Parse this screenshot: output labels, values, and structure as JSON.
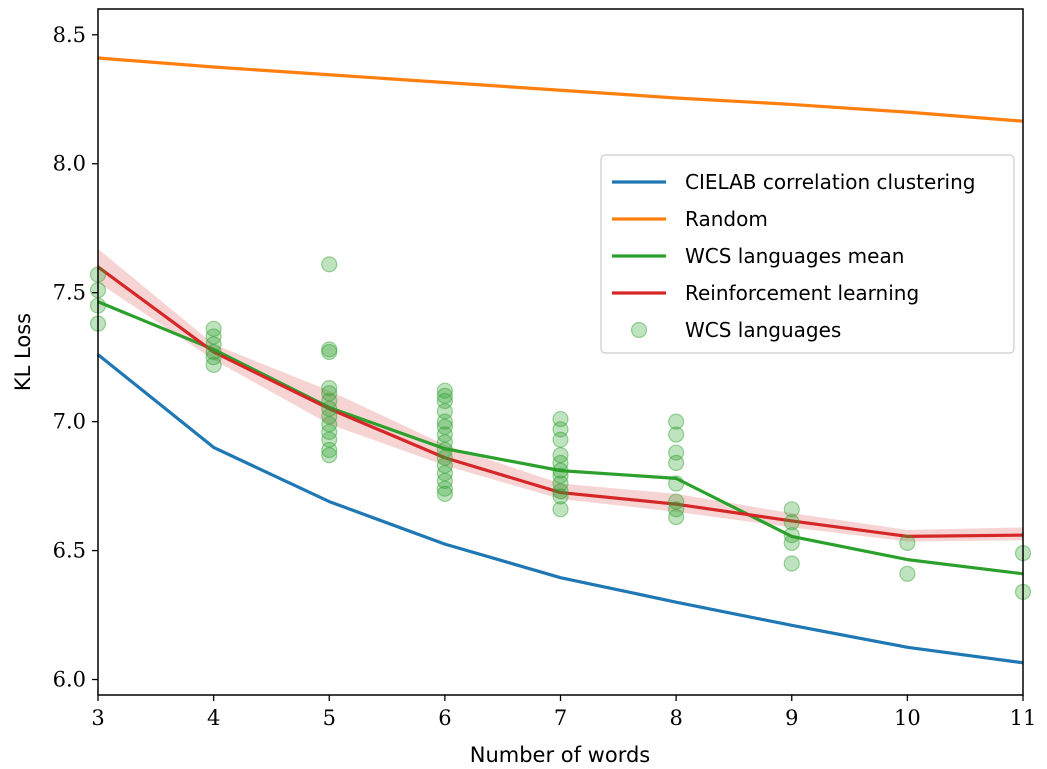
{
  "chart_data": {
    "type": "line",
    "xlabel": "Number of words",
    "ylabel": "KL Loss",
    "xlim": [
      3,
      11
    ],
    "ylim": [
      5.94,
      8.6
    ],
    "xticks": [
      "3",
      "4",
      "5",
      "6",
      "7",
      "8",
      "9",
      "10",
      "11"
    ],
    "yticks": [
      "6.0",
      "6.5",
      "7.0",
      "7.5",
      "8.0",
      "8.5"
    ],
    "grid": false,
    "legend_position": "right",
    "x": [
      3,
      4,
      5,
      6,
      7,
      8,
      9,
      10,
      11
    ],
    "series": [
      {
        "name": "CIELAB correlation clustering",
        "color": "#1f77b4",
        "values": [
          7.26,
          6.9,
          6.69,
          6.525,
          6.395,
          6.3,
          6.21,
          6.125,
          6.065
        ]
      },
      {
        "name": "Random",
        "color": "#ff7f0e",
        "values": [
          8.41,
          8.375,
          8.345,
          8.315,
          8.285,
          8.255,
          8.23,
          8.2,
          8.165
        ]
      },
      {
        "name": "WCS languages mean",
        "color": "#2ca02c",
        "values": [
          7.465,
          7.28,
          7.055,
          6.895,
          6.81,
          6.78,
          6.555,
          6.465,
          6.41
        ]
      },
      {
        "name": "Reinforcement learning",
        "color": "#d62728",
        "values": [
          7.6,
          7.27,
          7.05,
          6.86,
          6.725,
          6.68,
          6.615,
          6.555,
          6.56
        ],
        "band_lower": [
          7.54,
          7.24,
          6.99,
          6.83,
          6.7,
          6.65,
          6.59,
          6.535,
          6.54
        ],
        "band_upper": [
          7.67,
          7.3,
          7.12,
          6.91,
          6.76,
          6.72,
          6.645,
          6.58,
          6.59
        ]
      }
    ],
    "scatter": {
      "name": "WCS languages",
      "color": "#2ca02c",
      "points": [
        [
          3,
          7.38
        ],
        [
          3,
          7.45
        ],
        [
          3,
          7.51
        ],
        [
          3,
          7.57
        ],
        [
          4,
          7.22
        ],
        [
          4,
          7.25
        ],
        [
          4,
          7.27
        ],
        [
          4,
          7.3
        ],
        [
          4,
          7.33
        ],
        [
          4,
          7.36
        ],
        [
          5,
          6.87
        ],
        [
          5,
          6.89
        ],
        [
          5,
          6.93
        ],
        [
          5,
          6.96
        ],
        [
          5,
          6.99
        ],
        [
          5,
          7.02
        ],
        [
          5,
          7.05
        ],
        [
          5,
          7.08
        ],
        [
          5,
          7.11
        ],
        [
          5,
          7.13
        ],
        [
          5,
          7.27
        ],
        [
          5,
          7.28
        ],
        [
          5,
          7.61
        ],
        [
          6,
          6.72
        ],
        [
          6,
          6.74
        ],
        [
          6,
          6.77
        ],
        [
          6,
          6.8
        ],
        [
          6,
          6.83
        ],
        [
          6,
          6.86
        ],
        [
          6,
          6.89
        ],
        [
          6,
          6.92
        ],
        [
          6,
          6.95
        ],
        [
          6,
          6.98
        ],
        [
          6,
          7.0
        ],
        [
          6,
          7.04
        ],
        [
          6,
          7.08
        ],
        [
          6,
          7.1
        ],
        [
          6,
          7.12
        ],
        [
          7,
          6.66
        ],
        [
          7,
          6.71
        ],
        [
          7,
          6.73
        ],
        [
          7,
          6.76
        ],
        [
          7,
          6.79
        ],
        [
          7,
          6.81
        ],
        [
          7,
          6.84
        ],
        [
          7,
          6.87
        ],
        [
          7,
          6.93
        ],
        [
          7,
          6.97
        ],
        [
          7,
          7.01
        ],
        [
          8,
          6.63
        ],
        [
          8,
          6.66
        ],
        [
          8,
          6.69
        ],
        [
          8,
          6.76
        ],
        [
          8,
          6.84
        ],
        [
          8,
          6.88
        ],
        [
          8,
          6.95
        ],
        [
          8,
          7.0
        ],
        [
          9,
          6.45
        ],
        [
          9,
          6.53
        ],
        [
          9,
          6.56
        ],
        [
          9,
          6.61
        ],
        [
          9,
          6.66
        ],
        [
          10,
          6.41
        ],
        [
          10,
          6.53
        ],
        [
          11,
          6.34
        ],
        [
          11,
          6.49
        ]
      ]
    }
  }
}
